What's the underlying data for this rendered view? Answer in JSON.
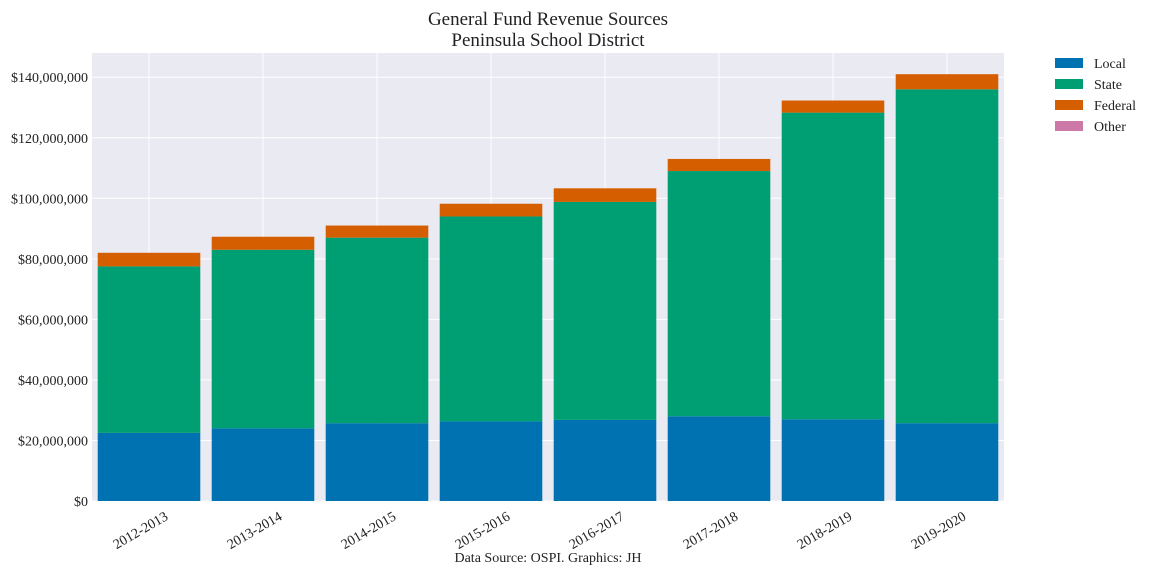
{
  "chart_data": {
    "type": "bar",
    "stacked": true,
    "title": "General Fund Revenue Sources",
    "subtitle": "Peninsula School District",
    "caption": "Data Source: OSPI. Graphics: JH",
    "xlabel": "",
    "ylabel": "",
    "categories": [
      "2012-2013",
      "2013-2014",
      "2014-2015",
      "2015-2016",
      "2016-2017",
      "2017-2018",
      "2018-2019",
      "2019-2020"
    ],
    "ylim": [
      0,
      148000000
    ],
    "yticks": [
      0,
      20000000,
      40000000,
      60000000,
      80000000,
      100000000,
      120000000,
      140000000
    ],
    "ytick_labels": [
      "$0",
      "$20,000,000",
      "$40,000,000",
      "$60,000,000",
      "$80,000,000",
      "$100,000,000",
      "$120,000,000",
      "$140,000,000"
    ],
    "grid": true,
    "legend_position": "outside-right",
    "series": [
      {
        "name": "Local",
        "color": "#0072b2",
        "values": [
          22500000,
          24000000,
          25700000,
          26300000,
          26800000,
          28000000,
          27000000,
          25700000
        ]
      },
      {
        "name": "State",
        "color": "#009e73",
        "values": [
          55000000,
          59000000,
          61300000,
          67700000,
          72000000,
          81000000,
          101300000,
          110300000
        ]
      },
      {
        "name": "Federal",
        "color": "#d55e00",
        "values": [
          4500000,
          4300000,
          4000000,
          4200000,
          4500000,
          4000000,
          4000000,
          5000000
        ]
      },
      {
        "name": "Other",
        "color": "#cc79a7",
        "values": [
          0,
          0,
          0,
          0,
          0,
          0,
          0,
          0
        ]
      }
    ]
  }
}
